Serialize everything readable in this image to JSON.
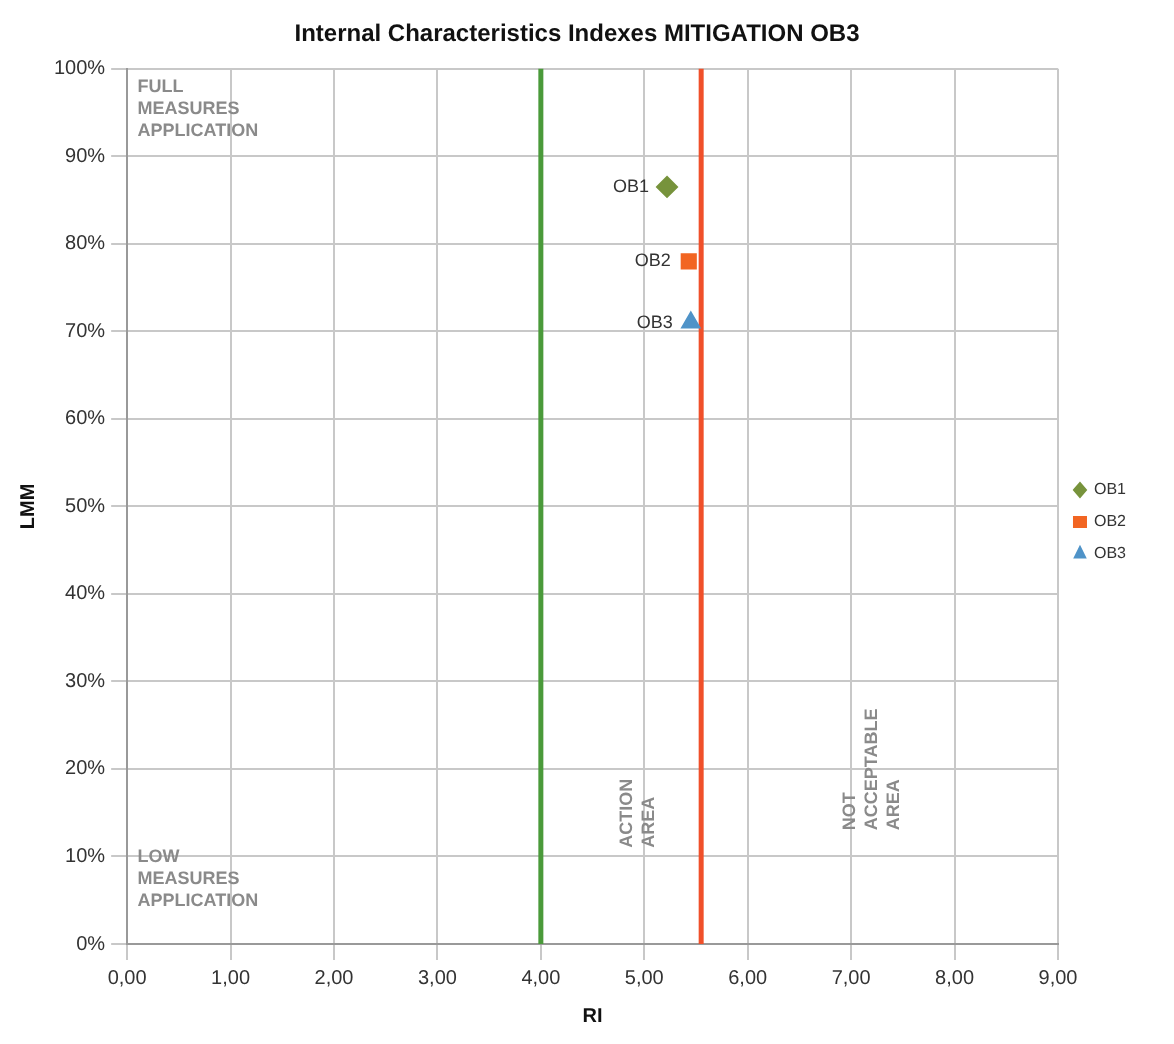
{
  "chart_data": {
    "type": "scatter",
    "title": "Internal Characteristics Indexes MITIGATION OB3",
    "xlabel": "RI",
    "ylabel": "LMM",
    "series": [
      {
        "name": "OB1",
        "color": "#77933c",
        "marker": "diamond",
        "x": [
          5.22
        ],
        "values": [
          86.5
        ]
      },
      {
        "name": "OB2",
        "color": "#f26522",
        "marker": "square",
        "x": [
          5.43
        ],
        "values": [
          78
        ]
      },
      {
        "name": "OB3",
        "color": "#4f93c8",
        "marker": "triangle",
        "x": [
          5.45
        ],
        "values": [
          71
        ]
      }
    ],
    "xlim": [
      0,
      9
    ],
    "xticks": [
      {
        "value": 0,
        "label": "0,00"
      },
      {
        "value": 1,
        "label": "1,00"
      },
      {
        "value": 2,
        "label": "2,00"
      },
      {
        "value": 3,
        "label": "3,00"
      },
      {
        "value": 4,
        "label": "4,00"
      },
      {
        "value": 5,
        "label": "5,00"
      },
      {
        "value": 6,
        "label": "6,00"
      },
      {
        "value": 7,
        "label": "7,00"
      },
      {
        "value": 8,
        "label": "8,00"
      },
      {
        "value": 9,
        "label": "9,00"
      }
    ],
    "ylim": [
      0,
      100
    ],
    "yticks": [
      {
        "value": 0,
        "label": "0%"
      },
      {
        "value": 10,
        "label": "10%"
      },
      {
        "value": 20,
        "label": "20%"
      },
      {
        "value": 30,
        "label": "30%"
      },
      {
        "value": 40,
        "label": "40%"
      },
      {
        "value": 50,
        "label": "50%"
      },
      {
        "value": 60,
        "label": "60%"
      },
      {
        "value": 70,
        "label": "70%"
      },
      {
        "value": 80,
        "label": "80%"
      },
      {
        "value": 90,
        "label": "90%"
      },
      {
        "value": 100,
        "label": "100%"
      }
    ],
    "ref_lines": [
      {
        "axis": "x",
        "value": 4,
        "color": "#4a9a3a"
      },
      {
        "axis": "x",
        "value": 5.55,
        "color": "#f0502a"
      }
    ],
    "annotations": [
      "FULL\nMEASURES\nAPPLICATION",
      "LOW\nMEASURES\nAPPLICATION",
      "ACTION\nAREA",
      "NOT\nACCEPTABLE\nAREA"
    ],
    "grid": true,
    "legend": "right"
  }
}
